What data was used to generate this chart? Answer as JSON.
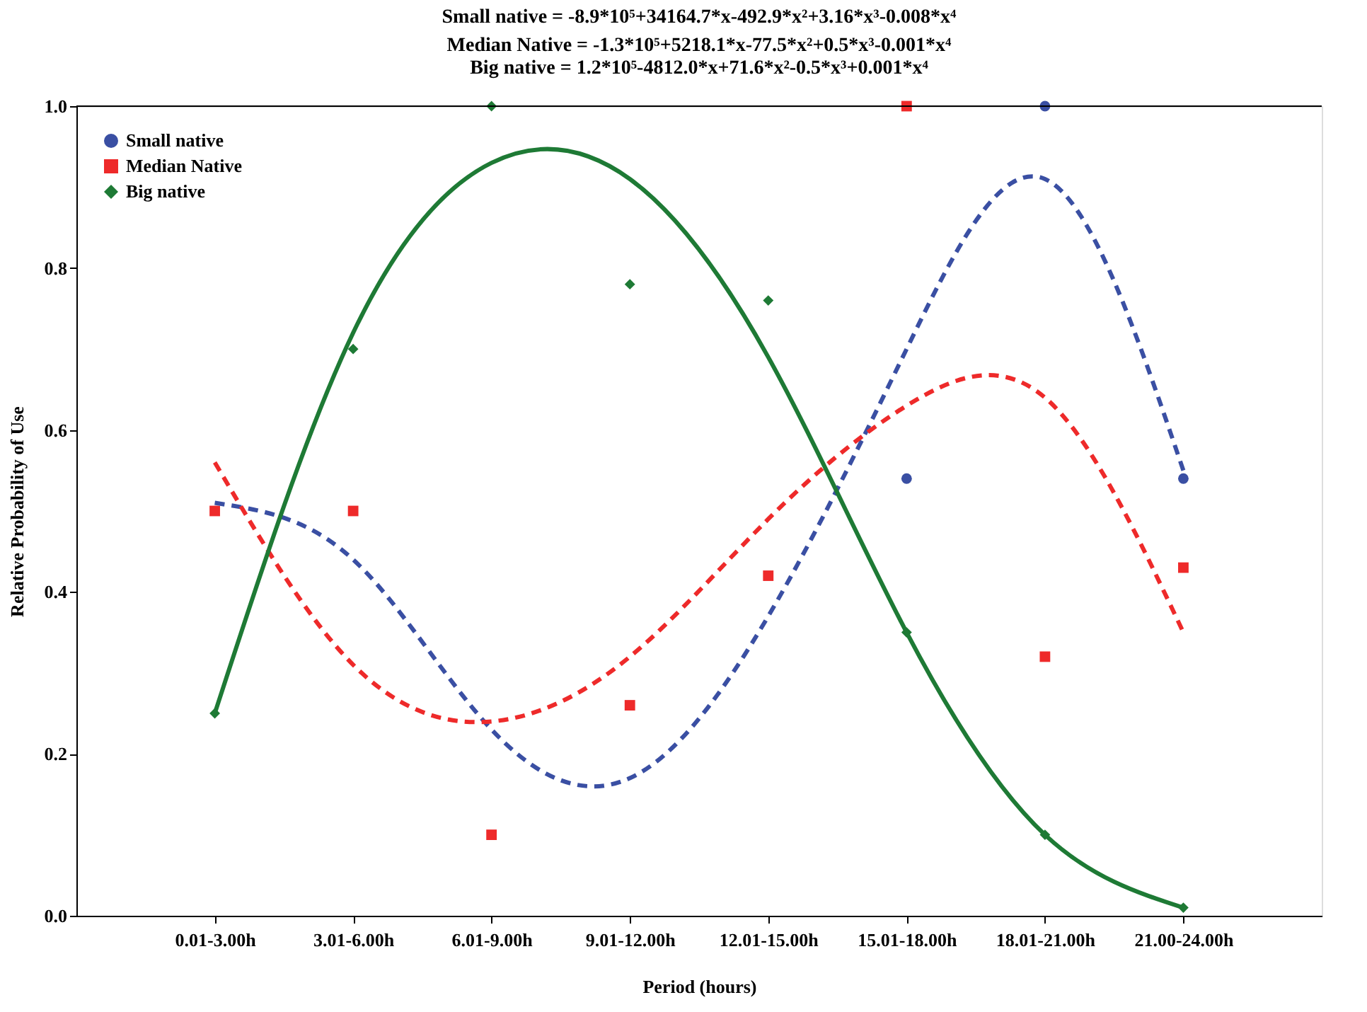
{
  "chart_data": {
    "type": "scatter",
    "title": "Small native = -8.9*10⁵+34164.7*x-492.9*x²+3.16*x³-0.008*x⁴",
    "subtitle": "Median Native = -1.3*10⁵+5218.1*x-77.5*x²+0.5*x³-0.001*x⁴\nBig native = 1.2*10⁵-4812.0*x+71.6*x²-0.5*x³+0.001*x⁴",
    "xlabel": "Period (hours)",
    "ylabel": "Relative Probability of Use",
    "categories": [
      "0.01-3.00h",
      "3.01-6.00h",
      "6.01-9.00h",
      "9.01-12.00h",
      "12.01-15.00h",
      "15.01-18.00h",
      "18.01-21.00h",
      "21.00-24.00h"
    ],
    "ylim": [
      0,
      1
    ],
    "yticks": [
      {
        "value": 0,
        "label": "0.0"
      },
      {
        "value": 0.2,
        "label": "0.2"
      },
      {
        "value": 0.4,
        "label": "0.4"
      },
      {
        "value": 0.6,
        "label": "0.6"
      },
      {
        "value": 0.8,
        "label": "0.8"
      },
      {
        "value": 1,
        "label": "1.0"
      }
    ],
    "grid": false,
    "legend": "top left",
    "series": [
      {
        "name": "Small native",
        "marker": "circle",
        "color": "#3a4fa3",
        "values": [
          null,
          null,
          null,
          null,
          null,
          0.54,
          1.0,
          0.54
        ]
      },
      {
        "name": "Median Native",
        "marker": "square",
        "color": "#ee2a2a",
        "values": [
          0.5,
          0.5,
          0.1,
          0.26,
          0.42,
          1.0,
          0.32,
          0.43
        ]
      },
      {
        "name": "Big native",
        "marker": "diamond",
        "color": "#1e7a35",
        "values": [
          0.25,
          0.7,
          1.0,
          0.78,
          0.76,
          0.35,
          0.1,
          0.01
        ]
      },
      {
        "type": "line",
        "line_style": "dashed",
        "color": "#3a4fa3",
        "values": [
          0.51,
          0.44,
          0.23,
          0.17,
          0.37,
          0.7,
          0.91,
          0.55
        ]
      },
      {
        "type": "line",
        "line_style": "dashed",
        "color": "#ee2a2a",
        "values": [
          0.56,
          0.31,
          0.24,
          0.32,
          0.49,
          0.63,
          0.64,
          0.35
        ]
      },
      {
        "type": "line",
        "line_style": "solid",
        "color": "#1e7a35",
        "values": [
          0.25,
          0.72,
          0.93,
          0.91,
          0.69,
          0.35,
          0.1,
          0.01
        ]
      }
    ]
  }
}
